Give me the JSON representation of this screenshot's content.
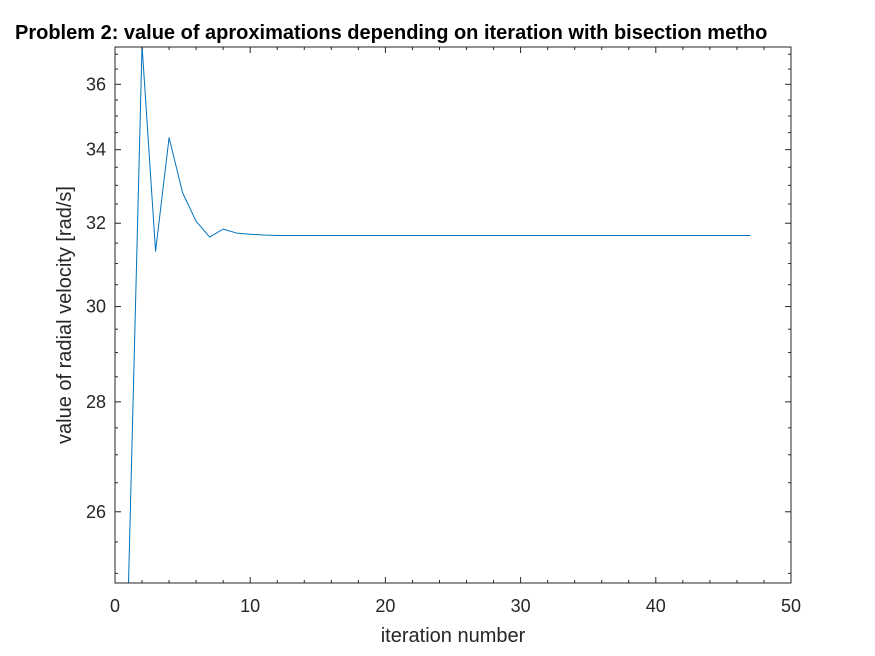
{
  "chart_data": {
    "type": "line",
    "title": "Problem 2: value of aproximations depending on iteration with bisection metho",
    "xlabel": "iteration number",
    "ylabel": "value of radial velocity [rad/s]",
    "xlim": [
      0,
      50
    ],
    "ylim": [
      24.85,
      37.25
    ],
    "x_scale": "linear",
    "y_scale": "reciprocal",
    "xticks": [
      0,
      10,
      20,
      30,
      40,
      50
    ],
    "yticks": [
      26,
      28,
      30,
      32,
      34,
      36
    ],
    "xtick_labels": [
      "0",
      "10",
      "20",
      "30",
      "40",
      "50"
    ],
    "ytick_labels": [
      "26",
      "28",
      "30",
      "32",
      "34",
      "36"
    ],
    "grid": false,
    "box": true,
    "series": [
      {
        "color": "#0072bd",
        "x": [
          1,
          2,
          3,
          4,
          5,
          6,
          7,
          8,
          9,
          10,
          11,
          12,
          13,
          14,
          15,
          16,
          17,
          18,
          19,
          20,
          21,
          22,
          23,
          24,
          25,
          26,
          27,
          28,
          29,
          30,
          31,
          32,
          33,
          34,
          35,
          36,
          37,
          38,
          39,
          40,
          41,
          42,
          43,
          44,
          45,
          46,
          47
        ],
        "y": [
          24.85,
          37.3,
          31.3,
          34.35,
          32.8,
          32.05,
          31.65,
          31.85,
          31.75,
          31.72,
          31.7,
          31.69,
          31.69,
          31.69,
          31.69,
          31.69,
          31.69,
          31.69,
          31.69,
          31.69,
          31.69,
          31.69,
          31.69,
          31.69,
          31.69,
          31.69,
          31.69,
          31.69,
          31.69,
          31.69,
          31.69,
          31.69,
          31.69,
          31.69,
          31.69,
          31.69,
          31.69,
          31.69,
          31.69,
          31.69,
          31.69,
          31.69,
          31.69,
          31.69,
          31.69,
          31.69,
          31.69
        ]
      }
    ]
  },
  "colors": {
    "axis": "#262626",
    "line": "#0072bd",
    "background": "#ffffff"
  }
}
